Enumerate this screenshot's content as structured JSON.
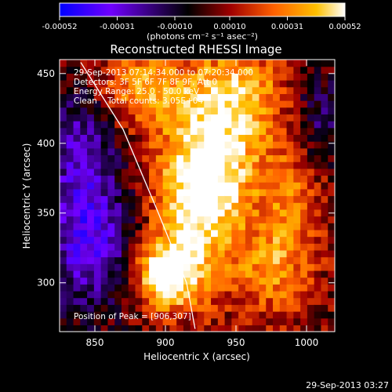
{
  "chart_data": {
    "type": "heatmap",
    "title": "Reconstructed RHESSI Image",
    "xlabel": "Heliocentric X (arcsec)",
    "ylabel": "Heliocentric Y (arcsec)",
    "xlim": [
      825,
      1020
    ],
    "ylim": [
      265,
      460
    ],
    "x_ticks": [
      850,
      900,
      950,
      1000
    ],
    "y_ticks": [
      300,
      350,
      400,
      450
    ],
    "colorbar": {
      "ticks": [
        "-0.00052",
        "-0.00031",
        "-0.00010",
        "0.00010",
        "0.00031",
        "0.00052"
      ],
      "tick_values": [
        -0.00052,
        -0.00031,
        -0.0001,
        0.0001,
        0.00031,
        0.00052
      ],
      "range": [
        -0.00052,
        0.00052
      ],
      "units_label": "(photons cm⁻² s⁻¹ asec⁻²)",
      "colors": [
        "#0000ff",
        "#7000ff",
        "#000000",
        "#a00000",
        "#ff6000",
        "#ffc000",
        "#ffffff"
      ]
    },
    "annotations": [
      "29-Sep-2013 07:14:34.000 to 07:20:34.000",
      "Detectors: 3F 5F 6F 7F 8F 9F, Att 0",
      "Energy Range: 25.0 - 50.0 keV",
      "Clean    Total counts: 3.05E+04"
    ],
    "peak_label": "Position of Peak = [906,307]",
    "peak_position": [
      906,
      307
    ],
    "limb_line": [
      [
        840,
        458
      ],
      [
        870,
        410
      ],
      [
        895,
        350
      ],
      [
        915,
        300
      ],
      [
        921,
        267
      ]
    ],
    "emission_model": [
      {
        "x": 900,
        "y": 305,
        "sx": 15,
        "sy": 16,
        "amp": 0.00052
      },
      {
        "x": 920,
        "y": 350,
        "sx": 20,
        "sy": 40,
        "amp": 0.00042
      },
      {
        "x": 940,
        "y": 395,
        "sx": 26,
        "sy": 35,
        "amp": 0.00036
      },
      {
        "x": 950,
        "y": 440,
        "sx": 28,
        "sy": 20,
        "amp": 0.00028
      },
      {
        "x": 975,
        "y": 310,
        "sx": 20,
        "sy": 25,
        "amp": 0.00026
      },
      {
        "x": 990,
        "y": 360,
        "sx": 15,
        "sy": 30,
        "amp": 0.0002
      },
      {
        "x": 880,
        "y": 440,
        "sx": 20,
        "sy": 20,
        "amp": 0.0003
      },
      {
        "x": 845,
        "y": 330,
        "sx": 22,
        "sy": 35,
        "amp": -0.0004
      },
      {
        "x": 840,
        "y": 400,
        "sx": 18,
        "sy": 30,
        "amp": -0.00028
      },
      {
        "x": 1010,
        "y": 420,
        "sx": 15,
        "sy": 25,
        "amp": -0.00022
      }
    ]
  },
  "footer": {
    "timestamp": "29-Sep-2013 03:27"
  }
}
